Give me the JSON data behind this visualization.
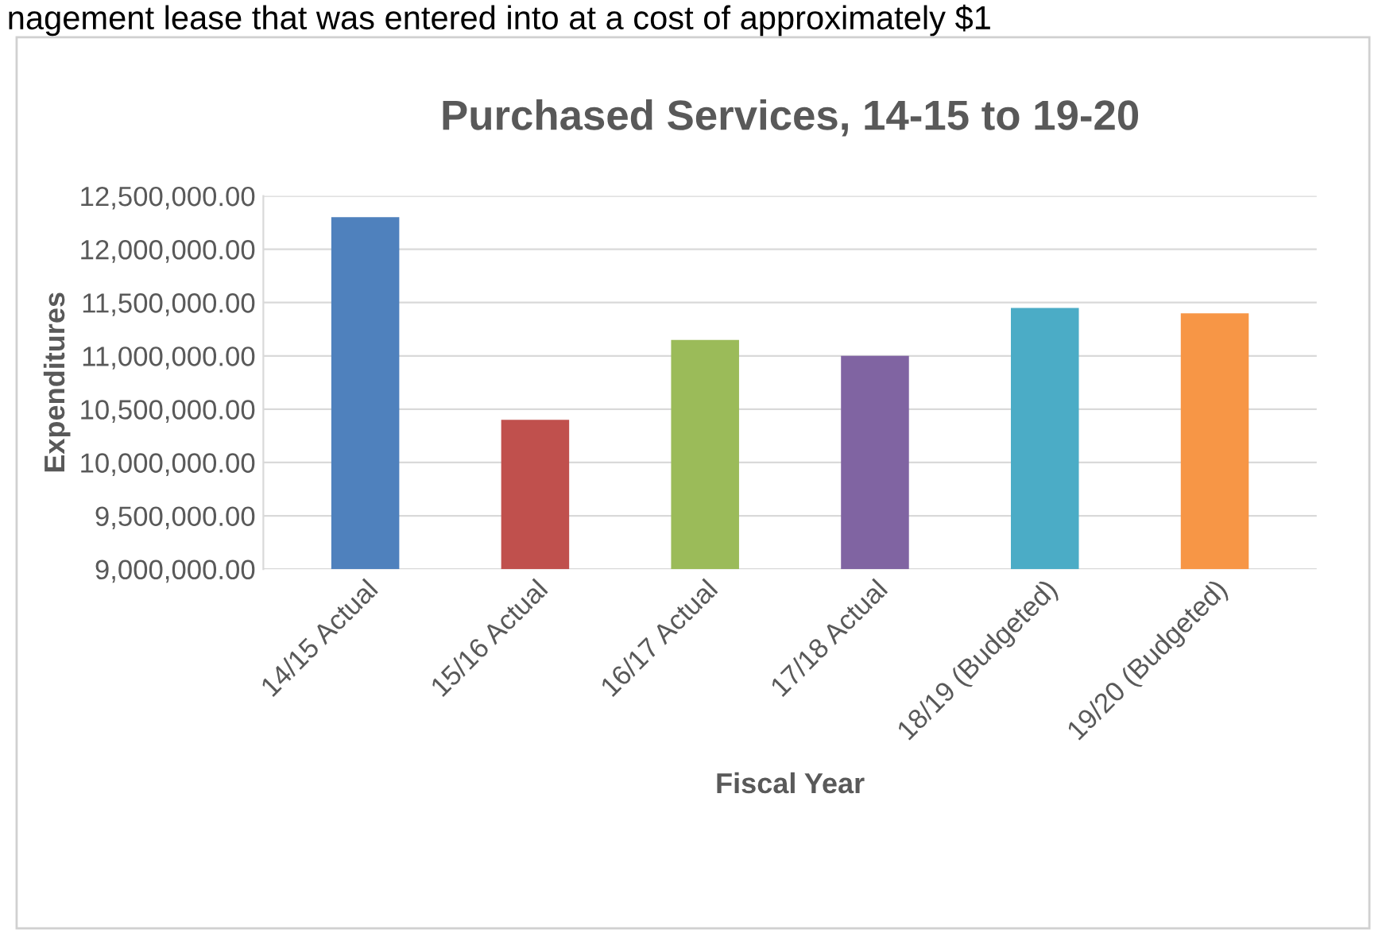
{
  "chart_data": {
    "type": "bar",
    "title": "Purchased Services, 14-15 to 19-20",
    "xlabel": "Fiscal Year",
    "ylabel": "Expenditures",
    "annotations": [
      "nagement lease that was entered into at a cost of approximately $1"
    ],
    "categories": [
      "14/15 Actual",
      "15/16 Actual",
      "16/17 Actual",
      "17/18 Actual",
      "18/19 (Budgeted)",
      "19/20 (Budgeted)"
    ],
    "values": [
      12300000,
      10400000,
      11150000,
      11000000,
      11450000,
      11400000
    ],
    "colors": [
      "#4f81bd",
      "#c0504d",
      "#9bbb59",
      "#8064a2",
      "#4bacc6",
      "#f79646"
    ],
    "ylim": [
      9000000,
      12500000
    ],
    "yticks": [
      {
        "value": 9000000,
        "label": "9,000,000.00"
      },
      {
        "value": 9500000,
        "label": "9,500,000.00"
      },
      {
        "value": 10000000,
        "label": "10,000,000.00"
      },
      {
        "value": 10500000,
        "label": "10,500,000.00"
      },
      {
        "value": 11000000,
        "label": "11,000,000.00"
      },
      {
        "value": 11500000,
        "label": "11,500,000.00"
      },
      {
        "value": 12000000,
        "label": "12,000,000.00"
      },
      {
        "value": 12500000,
        "label": "12,500,000.00"
      }
    ],
    "grid": "y"
  }
}
